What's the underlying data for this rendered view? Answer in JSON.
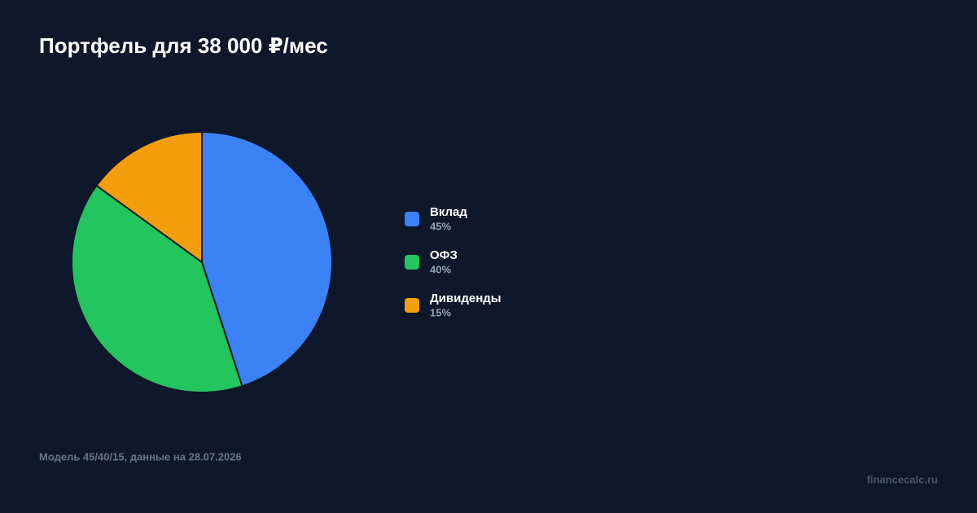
{
  "chart_data": {
    "type": "pie",
    "title": "Портфель для 38 000 ₽/мес",
    "categories": [
      "Вклад",
      "ОФЗ",
      "Дивиденды"
    ],
    "values": [
      45,
      40,
      15
    ],
    "value_labels": [
      "45%",
      "40%",
      "15%"
    ],
    "colors": [
      "#3b82f6",
      "#22c55e",
      "#f59e0b"
    ],
    "footnote": "Модель 45/40/15, данные на 28.07.2026",
    "watermark": "financecalc.ru"
  }
}
